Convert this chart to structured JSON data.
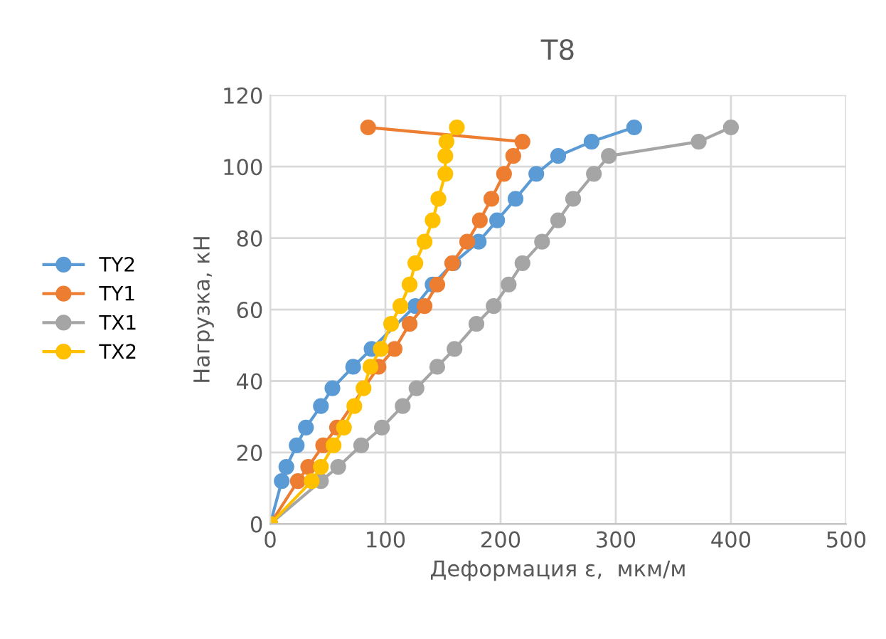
{
  "chart_data": {
    "type": "line",
    "title": "T8",
    "xlabel": "Деформация ε,  мкм/м",
    "ylabel": "Нагрузка, кН",
    "xlim": [
      0,
      500
    ],
    "xticks": [
      0,
      100,
      200,
      300,
      400,
      500
    ],
    "ylim": [
      0,
      120
    ],
    "yticks": [
      0,
      20,
      40,
      60,
      80,
      100,
      120
    ],
    "grid": true,
    "legend": "left",
    "marker": "circle",
    "line_style": "solid",
    "series": [
      {
        "name": "TY2",
        "color": "#5b9bd5",
        "x": [
          0,
          10,
          14,
          23,
          31,
          44,
          54,
          72,
          88,
          107,
          126,
          141,
          159,
          181,
          197,
          213,
          231,
          250,
          279,
          316
        ],
        "values": [
          0,
          12,
          16,
          22,
          27,
          33,
          38,
          44,
          49,
          null,
          61,
          67,
          73,
          79,
          85,
          91,
          98,
          103,
          107,
          111
        ]
      },
      {
        "name": "TY1",
        "color": "#ed7d31",
        "x": [
          0,
          24,
          33,
          46,
          58,
          72,
          82,
          94,
          108,
          121,
          134,
          145,
          158,
          171,
          182,
          192,
          203,
          211,
          219,
          85
        ],
        "values": [
          0,
          12,
          16,
          22,
          27,
          null,
          null,
          44,
          49,
          56,
          61,
          67,
          73,
          79,
          85,
          91,
          98,
          103,
          107,
          111
        ]
      },
      {
        "name": "TX1",
        "color": "#a5a5a5",
        "x": [
          0,
          44,
          59,
          79,
          97,
          115,
          127,
          145,
          160,
          179,
          194,
          207,
          219,
          236,
          250,
          263,
          281,
          294,
          372,
          400
        ],
        "values": [
          0,
          12,
          16,
          22,
          27,
          33,
          38,
          44,
          49,
          56,
          61,
          67,
          73,
          79,
          85,
          91,
          98,
          103,
          107,
          111
        ]
      },
      {
        "name": "TX2",
        "color": "#ffc000",
        "x": [
          0,
          36,
          44,
          55,
          64,
          73,
          81,
          87,
          96,
          105,
          113,
          121,
          126,
          134,
          141,
          146,
          152,
          152,
          153,
          162
        ],
        "values": [
          0,
          12,
          16,
          22,
          27,
          33,
          38,
          44,
          49,
          56,
          61,
          67,
          73,
          79,
          85,
          91,
          98,
          103,
          107,
          111
        ]
      }
    ]
  }
}
